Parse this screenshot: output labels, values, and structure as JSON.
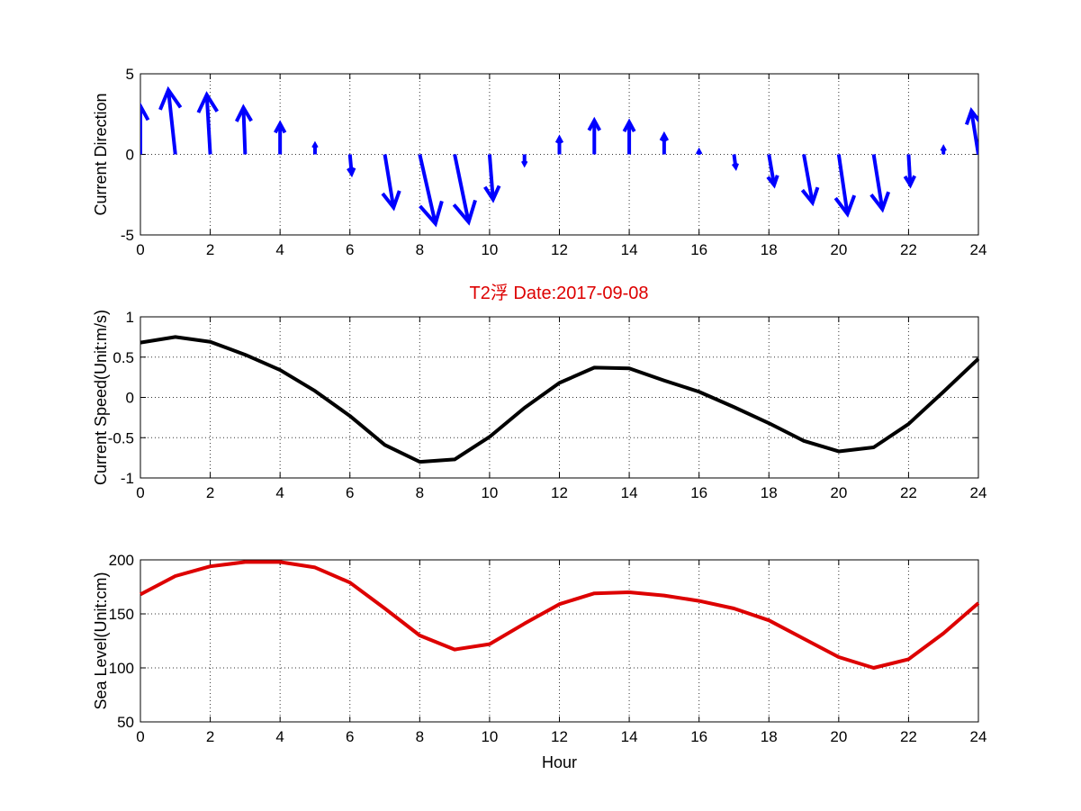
{
  "figure": {
    "title": "T2浮   Date:2017-09-08",
    "title_color": "#dd0000"
  },
  "chart_data": [
    {
      "id": "direction",
      "type": "quiver",
      "ylabel": "Current Direction",
      "xlabel": "",
      "xlim": [
        0,
        24
      ],
      "ylim": [
        -5,
        5
      ],
      "xticks": [
        0,
        2,
        4,
        6,
        8,
        10,
        12,
        14,
        16,
        18,
        20,
        22,
        24
      ],
      "yticks": [
        -5,
        0,
        5
      ],
      "grid": true,
      "color": "#0000ff",
      "vectors": [
        {
          "x": 0,
          "u": 0.0,
          "v": 3.0
        },
        {
          "x": 1,
          "u": -0.2,
          "v": 4.0
        },
        {
          "x": 2,
          "u": -0.1,
          "v": 3.7
        },
        {
          "x": 3,
          "u": -0.05,
          "v": 2.9
        },
        {
          "x": 4,
          "u": 0.0,
          "v": 1.9
        },
        {
          "x": 5,
          "u": 0.0,
          "v": 0.6
        },
        {
          "x": 6,
          "u": 0.05,
          "v": -1.2
        },
        {
          "x": 7,
          "u": 0.25,
          "v": -3.3
        },
        {
          "x": 8,
          "u": 0.45,
          "v": -4.3
        },
        {
          "x": 9,
          "u": 0.4,
          "v": -4.2
        },
        {
          "x": 10,
          "u": 0.1,
          "v": -2.8
        },
        {
          "x": 11,
          "u": 0.0,
          "v": -0.6
        },
        {
          "x": 12,
          "u": 0.0,
          "v": 1.0
        },
        {
          "x": 13,
          "u": 0.0,
          "v": 2.1
        },
        {
          "x": 14,
          "u": 0.0,
          "v": 2.0
        },
        {
          "x": 15,
          "u": 0.0,
          "v": 1.2
        },
        {
          "x": 16,
          "u": 0.0,
          "v": 0.2
        },
        {
          "x": 17,
          "u": 0.05,
          "v": -0.8
        },
        {
          "x": 18,
          "u": 0.15,
          "v": -1.9
        },
        {
          "x": 19,
          "u": 0.25,
          "v": -3.0
        },
        {
          "x": 20,
          "u": 0.25,
          "v": -3.7
        },
        {
          "x": 21,
          "u": 0.25,
          "v": -3.4
        },
        {
          "x": 22,
          "u": 0.05,
          "v": -1.9
        },
        {
          "x": 23,
          "u": 0.0,
          "v": 0.4
        },
        {
          "x": 24,
          "u": -0.2,
          "v": 2.7
        }
      ]
    },
    {
      "id": "speed",
      "type": "line",
      "ylabel": "Current Speed(Unit:m/s)",
      "xlabel": "",
      "xlim": [
        0,
        24
      ],
      "ylim": [
        -1,
        1
      ],
      "xticks": [
        0,
        2,
        4,
        6,
        8,
        10,
        12,
        14,
        16,
        18,
        20,
        22,
        24
      ],
      "yticks": [
        -1,
        -0.5,
        0,
        0.5,
        1
      ],
      "grid": true,
      "color": "#000000",
      "x": [
        0,
        1,
        2,
        3,
        4,
        5,
        6,
        7,
        8,
        9,
        10,
        11,
        12,
        13,
        14,
        15,
        16,
        17,
        18,
        19,
        20,
        21,
        22,
        23,
        24
      ],
      "y": [
        0.68,
        0.75,
        0.69,
        0.53,
        0.34,
        0.08,
        -0.23,
        -0.59,
        -0.8,
        -0.77,
        -0.49,
        -0.13,
        0.18,
        0.37,
        0.36,
        0.21,
        0.07,
        -0.12,
        -0.32,
        -0.54,
        -0.67,
        -0.62,
        -0.33,
        0.07,
        0.48
      ]
    },
    {
      "id": "sealevel",
      "type": "line",
      "ylabel": "Sea Level(Unit:cm)",
      "xlabel": "Hour",
      "xlim": [
        0,
        24
      ],
      "ylim": [
        50,
        200
      ],
      "xticks": [
        0,
        2,
        4,
        6,
        8,
        10,
        12,
        14,
        16,
        18,
        20,
        22,
        24
      ],
      "yticks": [
        50,
        100,
        150,
        200
      ],
      "grid": true,
      "color": "#dd0000",
      "x": [
        0,
        1,
        2,
        3,
        4,
        5,
        6,
        7,
        8,
        9,
        10,
        11,
        12,
        13,
        14,
        15,
        16,
        17,
        18,
        19,
        20,
        21,
        22,
        23,
        24
      ],
      "y": [
        168,
        185,
        194,
        198,
        198,
        193,
        179,
        155,
        130,
        117,
        122,
        141,
        159,
        169,
        170,
        167,
        162,
        155,
        144,
        127,
        110,
        100,
        108,
        132,
        160
      ]
    }
  ]
}
